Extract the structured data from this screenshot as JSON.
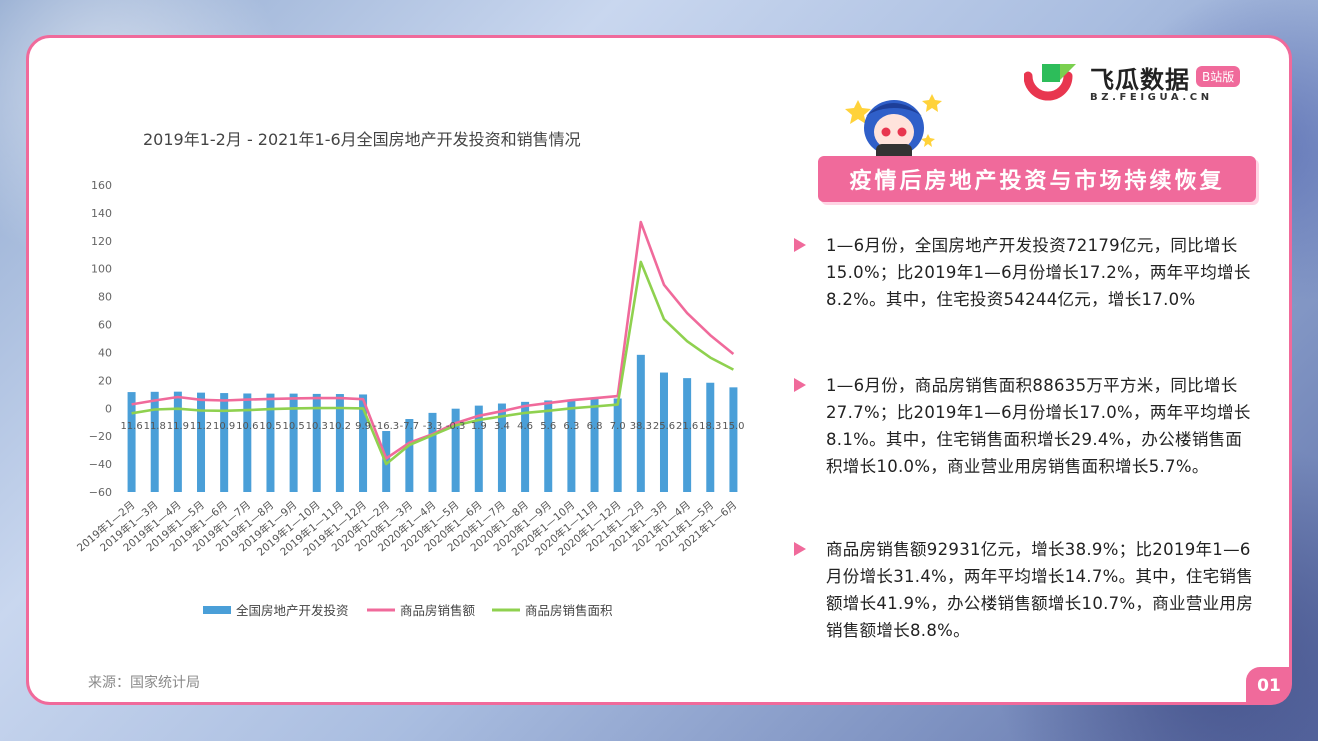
{
  "brand": {
    "title": "飞瓜数据",
    "badge": "B站版",
    "url": "BZ.FEIGUA.CN"
  },
  "banner": "疫情后房地产投资与市场持续恢复",
  "bullets": [
    "1—6月份，全国房地产开发投资72179亿元，同比增长15.0%；比2019年1—6月份增长17.2%，两年平均增长8.2%。其中，住宅投资54244亿元，增长17.0%",
    "1—6月份，商品房销售面积88635万平方米，同比增长27.7%；比2019年1—6月份增长17.0%，两年平均增长8.1%。其中，住宅销售面积增长29.4%，办公楼销售面积增长10.0%，商业营业用房销售面积增长5.7%。",
    "商品房销售额92931亿元，增长38.9%；比2019年1—6月份增长31.4%，两年平均增长14.7%。其中，住宅销售额增长41.9%，办公楼销售额增长10.7%，商业营业用房销售额增长8.8%。"
  ],
  "source": "来源：国家统计局",
  "page_number": "01",
  "colors": {
    "accent": "#f06a9b",
    "bar": "#4a9fd8",
    "sales_amount_line": "#f06a9b",
    "sales_area_line": "#8fd14f"
  },
  "chart_data": {
    "type": "bar",
    "title": "2019年1-2月 - 2021年1-6月全国房地产开发投资和销售情况",
    "ylim": [
      -60,
      160
    ],
    "yticks": [
      160,
      140,
      120,
      100,
      80,
      60,
      40,
      20,
      0,
      -20,
      -40,
      -60
    ],
    "grid": false,
    "legend_position": "bottom",
    "categories": [
      "2019年1—2月",
      "2019年1—3月",
      "2019年1—4月",
      "2019年1—5月",
      "2019年1—6月",
      "2019年1—7月",
      "2019年1—8月",
      "2019年1—9月",
      "2019年1—10月",
      "2019年1—11月",
      "2019年1—12月",
      "2020年1—2月",
      "2020年1—3月",
      "2020年1—4月",
      "2020年1—5月",
      "2020年1—6月",
      "2020年1—7月",
      "2020年1—8月",
      "2020年1—9月",
      "2020年1—10月",
      "2020年1—11月",
      "2020年1—12月",
      "2021年1—2月",
      "2021年1—3月",
      "2021年1—4月",
      "2021年1—5月",
      "2021年1—6月"
    ],
    "series": [
      {
        "name": "全国房地产开发投资",
        "kind": "bar",
        "values": [
          11.6,
          11.8,
          11.9,
          11.2,
          10.9,
          10.6,
          10.5,
          10.5,
          10.3,
          10.2,
          9.9,
          -16.3,
          -7.7,
          -3.3,
          -0.3,
          1.9,
          3.4,
          4.6,
          5.6,
          6.3,
          6.8,
          7.0,
          38.3,
          25.6,
          21.6,
          18.3,
          15.0
        ],
        "labels": [
          "11.6",
          "11.8",
          "11.9",
          "11.2",
          "10.9",
          "10.6",
          "10.5",
          "10.5",
          "10.3",
          "10.2",
          "9.9",
          "-16.3",
          "-7.7",
          "-3.3",
          "-0.3",
          "1.9",
          "3.4",
          "4.6",
          "5.6",
          "6.3",
          "6.8",
          "7.0",
          "38.3",
          "25.6",
          "21.6",
          "18.3",
          "15.0"
        ]
      },
      {
        "name": "商品房销售额",
        "kind": "line",
        "values": [
          2.8,
          5.6,
          8.1,
          6.1,
          5.6,
          6.2,
          6.7,
          7.1,
          7.3,
          7.3,
          6.5,
          -35.9,
          -24.7,
          -18.6,
          -10.6,
          -5.4,
          -2.1,
          1.6,
          3.7,
          5.8,
          7.2,
          8.7,
          133.4,
          88.5,
          68.2,
          52.4,
          38.9
        ]
      },
      {
        "name": "商品房销售面积",
        "kind": "line",
        "values": [
          -3.6,
          -0.9,
          -0.3,
          -1.6,
          -1.8,
          -1.3,
          -0.6,
          -0.1,
          0.1,
          0.2,
          -0.1,
          -39.9,
          -26.3,
          -19.3,
          -12.3,
          -8.4,
          -5.8,
          -3.3,
          -1.8,
          0.0,
          1.3,
          2.6,
          104.9,
          63.8,
          48.1,
          36.3,
          27.7
        ]
      }
    ]
  }
}
